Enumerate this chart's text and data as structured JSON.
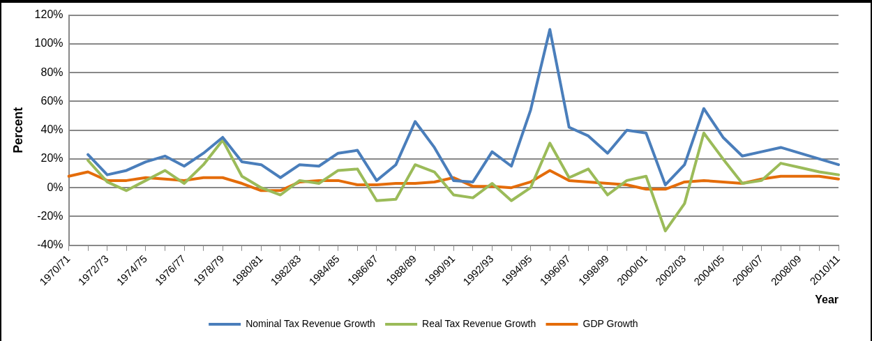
{
  "chart_data": {
    "type": "line",
    "xlabel": "Year",
    "ylabel": "Percent",
    "categories": [
      "1970/71",
      null,
      "1972/73",
      null,
      "1974/75",
      null,
      "1976/77",
      null,
      "1978/79",
      null,
      "1980/81",
      null,
      "1982/83",
      null,
      "1984/85",
      null,
      "1986/87",
      null,
      "1988/89",
      null,
      "1990/91",
      null,
      "1992/93",
      null,
      "1994/95",
      null,
      "1996/97",
      null,
      "1998/99",
      null,
      "2000/01",
      null,
      "2002/03",
      null,
      "2004/05",
      null,
      "2006/07",
      null,
      "2008/09",
      null,
      "2010/11"
    ],
    "series": [
      {
        "name": "Nominal Tax Revenue Growth",
        "color": "#4a7ebb",
        "values": [
          null,
          23,
          9,
          12,
          18,
          22,
          15,
          24,
          35,
          18,
          16,
          7,
          16,
          15,
          24,
          26,
          5,
          16,
          46,
          28,
          5,
          4,
          25,
          15,
          54,
          110,
          42,
          36,
          24,
          40,
          38,
          2,
          16,
          55,
          35,
          22,
          25,
          28,
          24,
          20,
          16
        ]
      },
      {
        "name": "Real Tax Revenue Growth",
        "color": "#9bbb59",
        "values": [
          null,
          19,
          4,
          -2,
          5,
          12,
          3,
          16,
          33,
          8,
          0,
          -5,
          5,
          3,
          12,
          13,
          -9,
          -8,
          16,
          11,
          -5,
          -7,
          3,
          -9,
          0,
          31,
          7,
          13,
          -5,
          5,
          8,
          -30,
          -11,
          38,
          20,
          3,
          5,
          17,
          14,
          11,
          9
        ]
      },
      {
        "name": "GDP Growth",
        "color": "#e46c0a",
        "values": [
          8,
          11,
          5,
          5,
          7,
          6,
          5,
          7,
          7,
          3,
          -2,
          -2,
          4,
          5,
          5,
          2,
          2,
          3,
          3,
          4,
          7,
          1,
          1,
          0,
          4,
          12,
          5,
          4,
          3,
          2,
          -1,
          -1,
          4,
          5,
          4,
          3,
          6,
          8,
          8,
          8,
          6
        ]
      }
    ],
    "ylim": [
      -40,
      120
    ],
    "yticks": [
      {
        "value": -40,
        "label": "-40%"
      },
      {
        "value": -20,
        "label": "-20%"
      },
      {
        "value": 0,
        "label": "0%"
      },
      {
        "value": 20,
        "label": "20%"
      },
      {
        "value": 40,
        "label": "40%"
      },
      {
        "value": 60,
        "label": "60%"
      },
      {
        "value": 80,
        "label": "80%"
      },
      {
        "value": 100,
        "label": "100%"
      },
      {
        "value": 120,
        "label": "120%"
      }
    ],
    "grid": "y",
    "legend": "bottom",
    "marker": "none",
    "line_style": "solid"
  }
}
